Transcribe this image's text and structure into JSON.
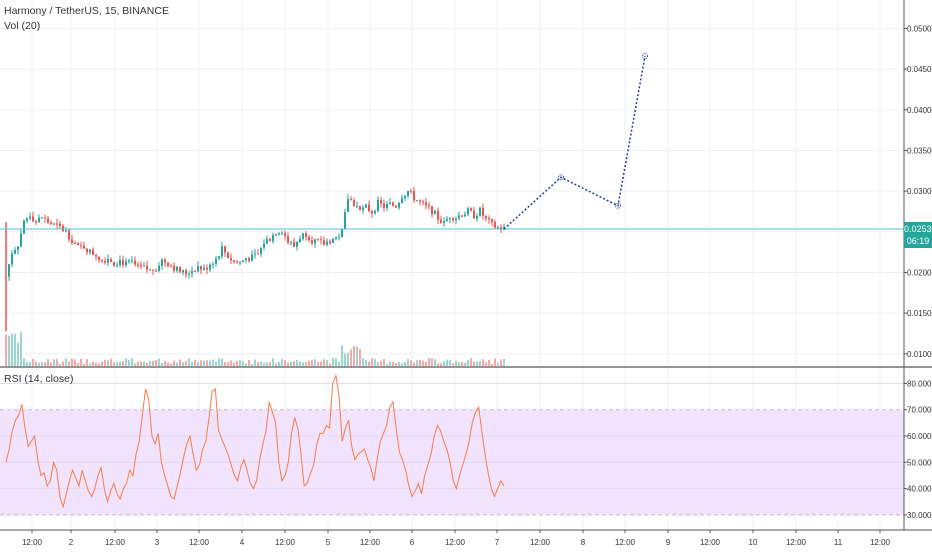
{
  "legend": {
    "symbol": "Harmony / TetherUS, 15, BINANCE",
    "volume": "Vol (20)",
    "rsi": "RSI (14, close)"
  },
  "last_price_label": "0.02535",
  "countdown_label": "06:19",
  "colors": {
    "up": "#26a69a",
    "down": "#ef5350",
    "rsi_line": "#f57c4a",
    "rsi_band": "#f1e3fb",
    "price_line": "#4fc3d9",
    "projection": "#2a3a9c",
    "grid": "#eef0f3"
  },
  "chart_data": [
    {
      "type": "candlestick",
      "title": "Harmony / TetherUS, 15, BINANCE",
      "ylim": [
        0.0085,
        0.0535
      ],
      "y_ticks": [
        "0.05000",
        "0.04500",
        "0.04000",
        "0.03500",
        "0.03000",
        "0.02500",
        "0.02000",
        "0.01500",
        "0.01000"
      ],
      "y_tick_values": [
        0.05,
        0.045,
        0.04,
        0.035,
        0.03,
        0.025,
        0.02,
        0.015,
        0.01
      ],
      "x_ticks": [
        "12:00",
        "2",
        "12:00",
        "3",
        "12:00",
        "4",
        "12:00",
        "5",
        "12:00",
        "6",
        "12:00",
        "7",
        "12:00",
        "8",
        "12:00",
        "9",
        "12:00",
        "10",
        "12:00",
        "11",
        "12:00"
      ],
      "price_line": 0.02535,
      "close_path": [
        [
          0,
          0.0195
        ],
        [
          2,
          0.0225
        ],
        [
          4,
          0.0235
        ],
        [
          6,
          0.0262
        ],
        [
          8,
          0.0272
        ],
        [
          10,
          0.0262
        ],
        [
          12,
          0.0268
        ],
        [
          14,
          0.0262
        ],
        [
          16,
          0.0258
        ],
        [
          18,
          0.0255
        ],
        [
          20,
          0.025
        ],
        [
          22,
          0.024
        ],
        [
          24,
          0.023
        ],
        [
          26,
          0.0232
        ],
        [
          28,
          0.0225
        ],
        [
          30,
          0.0222
        ],
        [
          32,
          0.0215
        ],
        [
          34,
          0.0218
        ],
        [
          36,
          0.0212
        ],
        [
          38,
          0.0215
        ],
        [
          40,
          0.021
        ],
        [
          42,
          0.0212
        ],
        [
          44,
          0.0205
        ],
        [
          46,
          0.0205
        ],
        [
          48,
          0.0202
        ],
        [
          50,
          0.0206
        ],
        [
          52,
          0.0215
        ],
        [
          54,
          0.0212
        ],
        [
          56,
          0.0206
        ],
        [
          58,
          0.0201
        ],
        [
          60,
          0.0199
        ],
        [
          62,
          0.0203
        ],
        [
          64,
          0.0207
        ],
        [
          66,
          0.0203
        ],
        [
          68,
          0.0211
        ],
        [
          70,
          0.0217
        ],
        [
          72,
          0.023
        ],
        [
          74,
          0.022
        ],
        [
          76,
          0.0213
        ],
        [
          78,
          0.0212
        ],
        [
          80,
          0.0218
        ],
        [
          82,
          0.0218
        ],
        [
          84,
          0.0222
        ],
        [
          86,
          0.0237
        ],
        [
          88,
          0.0242
        ],
        [
          90,
          0.025
        ],
        [
          92,
          0.0252
        ],
        [
          94,
          0.0238
        ],
        [
          96,
          0.0232
        ],
        [
          98,
          0.0244
        ],
        [
          100,
          0.0248
        ],
        [
          102,
          0.024
        ],
        [
          104,
          0.0237
        ],
        [
          106,
          0.0235
        ],
        [
          108,
          0.024
        ],
        [
          110,
          0.0242
        ],
        [
          112,
          0.025
        ],
        [
          114,
          0.0292
        ],
        [
          116,
          0.0285
        ],
        [
          118,
          0.0275
        ],
        [
          120,
          0.028
        ],
        [
          122,
          0.0275
        ],
        [
          124,
          0.0285
        ],
        [
          126,
          0.0281
        ],
        [
          128,
          0.0283
        ],
        [
          130,
          0.0282
        ],
        [
          132,
          0.0295
        ],
        [
          134,
          0.03
        ],
        [
          136,
          0.0292
        ],
        [
          138,
          0.0286
        ],
        [
          140,
          0.028
        ],
        [
          142,
          0.0276
        ],
        [
          144,
          0.0267
        ],
        [
          146,
          0.026
        ],
        [
          148,
          0.027
        ],
        [
          150,
          0.0268
        ],
        [
          152,
          0.0272
        ],
        [
          154,
          0.0275
        ],
        [
          156,
          0.027
        ],
        [
          158,
          0.0276
        ],
        [
          160,
          0.0265
        ],
        [
          162,
          0.0258
        ],
        [
          164,
          0.0255
        ],
        [
          166,
          0.0254
        ]
      ],
      "projection_points": [
        {
          "x": 166,
          "y": 0.02535
        },
        {
          "x": 185,
          "y": 0.0317
        },
        {
          "x": 204,
          "y": 0.0282
        },
        {
          "x": 213,
          "y": 0.0466
        }
      ]
    },
    {
      "type": "line",
      "title": "RSI (14, close)",
      "ylim": [
        25,
        85.5
      ],
      "y_ticks": [
        "80.0000",
        "70.0000",
        "60.0000",
        "50.0000",
        "40.0000",
        "30.0000"
      ],
      "y_tick_values": [
        80,
        70,
        60,
        50,
        40,
        30
      ],
      "band": [
        30,
        70
      ],
      "series": [
        {
          "values": [
            50,
            55,
            62,
            66,
            68,
            72,
            63,
            56,
            58,
            60,
            51,
            45,
            46,
            41,
            43,
            50,
            47,
            37,
            33,
            38,
            43,
            47,
            44,
            41,
            47,
            43,
            39,
            37,
            40,
            45,
            48,
            40,
            35,
            39,
            42,
            38,
            36,
            40,
            42,
            47,
            45,
            53,
            58,
            68,
            78,
            74,
            60,
            57,
            61,
            50,
            45,
            41,
            37,
            36,
            41,
            46,
            52,
            57,
            60,
            53,
            47,
            49,
            55,
            58,
            67,
            77,
            78,
            62,
            59,
            56,
            53,
            49,
            45,
            43,
            48,
            51,
            47,
            42,
            40,
            43,
            51,
            57,
            62,
            73,
            69,
            65,
            50,
            43,
            45,
            50,
            61,
            67,
            63,
            53,
            41,
            42,
            46,
            49,
            57,
            61,
            61,
            64,
            63,
            80,
            83,
            75,
            58,
            63,
            66,
            56,
            51,
            53,
            54,
            55,
            51,
            48,
            43,
            51,
            58,
            61,
            64,
            71,
            73,
            63,
            54,
            51,
            47,
            41,
            37,
            39,
            42,
            38,
            45,
            49,
            53,
            60,
            64,
            62,
            58,
            55,
            50,
            43,
            40,
            45,
            49,
            53,
            58,
            65,
            69,
            71,
            62,
            53,
            46,
            40,
            37,
            40,
            43,
            41
          ]
        }
      ]
    }
  ]
}
